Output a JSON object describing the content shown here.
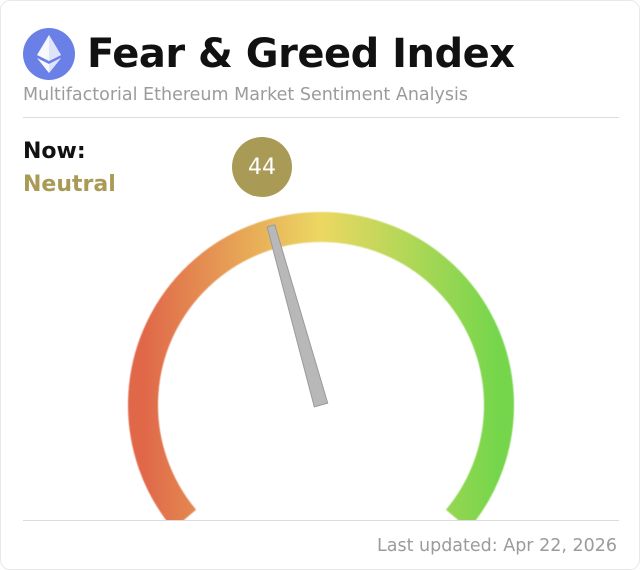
{
  "header": {
    "title": "Fear & Greed Index",
    "subtitle": "Multifactorial Ethereum Market Sentiment Analysis",
    "logo_icon": "ethereum-icon"
  },
  "current": {
    "now_label": "Now:",
    "sentiment": "Neutral",
    "value": "44",
    "gauge_value": 44,
    "gauge_min": 0,
    "gauge_max": 100
  },
  "footer": {
    "last_updated": "Last updated: Apr 22, 2026"
  },
  "colors": {
    "accent": "#a99a55",
    "fear": "#e0674a",
    "neutral": "#ecd862",
    "greed": "#74d64c",
    "needle": "#b8b8b8",
    "logo": "#6b80e6"
  }
}
